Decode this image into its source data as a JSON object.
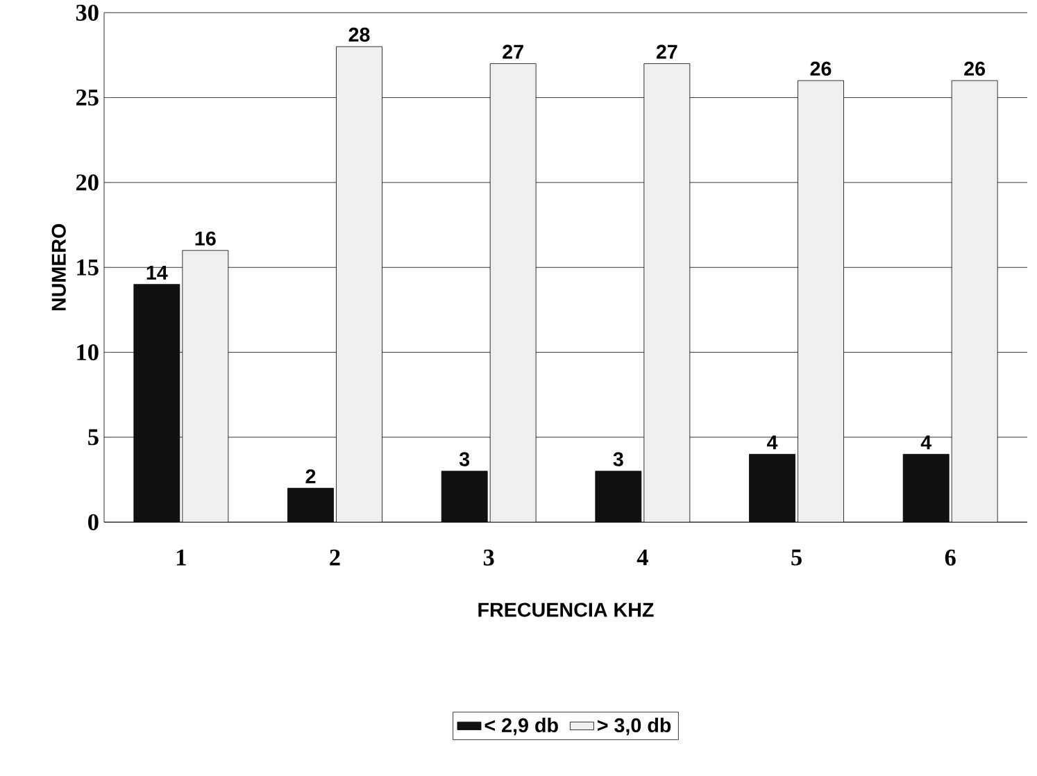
{
  "chart_data": {
    "type": "bar",
    "xlabel": "FRECUENCIA KHZ",
    "ylabel": "NUMERO",
    "categories": [
      "1",
      "2",
      "3",
      "4",
      "5",
      "6"
    ],
    "series": [
      {
        "name": "< 2,9  db",
        "color": "#111111",
        "values": [
          14,
          2,
          3,
          3,
          4,
          4
        ]
      },
      {
        "name": "> 3,0  db",
        "color": "#efefef",
        "values": [
          16,
          28,
          27,
          27,
          26,
          26
        ]
      }
    ],
    "ylim": [
      0,
      30
    ],
    "yticks": [
      0,
      5,
      10,
      15,
      20,
      25,
      30
    ],
    "grid": "y",
    "legend": "bottom",
    "data_labels": true
  }
}
